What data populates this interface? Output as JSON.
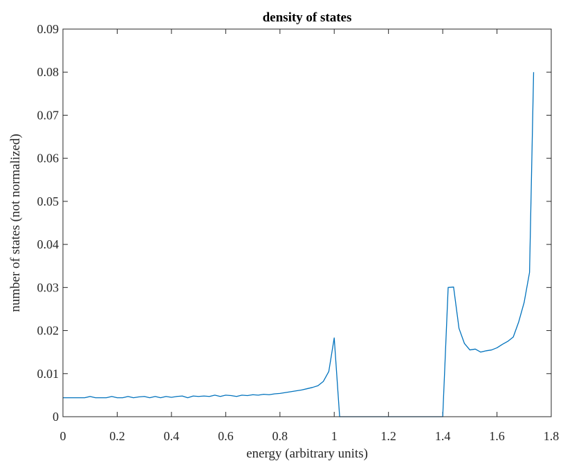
{
  "chart_data": {
    "type": "line",
    "title": "density of states",
    "xlabel": "energy (arbitrary units)",
    "ylabel": "number of states (not normalized)",
    "xlim": [
      0,
      1.8
    ],
    "ylim": [
      0,
      0.09
    ],
    "x_ticks": [
      "0",
      "0.2",
      "0.4",
      "0.6",
      "0.8",
      "1",
      "1.2",
      "1.4",
      "1.6",
      "1.8"
    ],
    "y_ticks": [
      "0",
      "0.01",
      "0.02",
      "0.03",
      "0.04",
      "0.05",
      "0.06",
      "0.07",
      "0.08",
      "0.09"
    ],
    "grid": false,
    "box": true,
    "line_color": "#0072BD",
    "series": [
      {
        "x": [
          0,
          0.02,
          0.04,
          0.06,
          0.08,
          0.1,
          0.12,
          0.14,
          0.16,
          0.18,
          0.2,
          0.22,
          0.24,
          0.26,
          0.28,
          0.3,
          0.32,
          0.34,
          0.36,
          0.38,
          0.4,
          0.42,
          0.44,
          0.46,
          0.48,
          0.5,
          0.52,
          0.54,
          0.56,
          0.58,
          0.6,
          0.62,
          0.64,
          0.66,
          0.68,
          0.7,
          0.72,
          0.74,
          0.76,
          0.78,
          0.8,
          0.82,
          0.84,
          0.86,
          0.88,
          0.9,
          0.92,
          0.94,
          0.96,
          0.98,
          1.0,
          1.02,
          1.1,
          1.2,
          1.3,
          1.4,
          1.42,
          1.44,
          1.46,
          1.48,
          1.5,
          1.52,
          1.54,
          1.56,
          1.58,
          1.6,
          1.62,
          1.64,
          1.66,
          1.68,
          1.7,
          1.72,
          1.735
        ],
        "y": [
          0.0044,
          0.0044,
          0.0044,
          0.0044,
          0.0044,
          0.0047,
          0.0044,
          0.0044,
          0.0044,
          0.0047,
          0.0044,
          0.0044,
          0.0047,
          0.0044,
          0.0046,
          0.0047,
          0.0044,
          0.0047,
          0.0044,
          0.0047,
          0.0045,
          0.0047,
          0.0048,
          0.0044,
          0.0048,
          0.0047,
          0.0048,
          0.0047,
          0.005,
          0.0047,
          0.005,
          0.0049,
          0.0047,
          0.005,
          0.0049,
          0.0051,
          0.005,
          0.0052,
          0.0051,
          0.0053,
          0.0054,
          0.0056,
          0.0058,
          0.006,
          0.0062,
          0.0065,
          0.0068,
          0.0072,
          0.0082,
          0.0105,
          0.0183,
          0,
          0,
          0,
          0,
          0,
          0.03,
          0.0301,
          0.0205,
          0.017,
          0.0155,
          0.0157,
          0.015,
          0.0153,
          0.0155,
          0.016,
          0.0168,
          0.0175,
          0.0185,
          0.022,
          0.0265,
          0.0335,
          0.08
        ]
      }
    ]
  }
}
